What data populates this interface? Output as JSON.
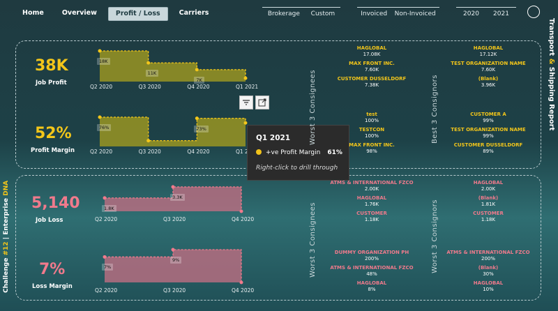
{
  "nav": {
    "items": [
      {
        "label": "Home"
      },
      {
        "label": "Overview"
      },
      {
        "label": "Profit / Loss",
        "active": true
      },
      {
        "label": "Carriers"
      }
    ]
  },
  "filters": {
    "group1": [
      "Brokerage",
      "Custom"
    ],
    "group2": [
      "Invoiced",
      "Non-Invoiced"
    ],
    "group3": [
      "2020",
      "2021"
    ]
  },
  "side_title": {
    "part1": "Transport",
    "amp": "&",
    "part2": "Shipping Report"
  },
  "side_left": {
    "a": "Challenge",
    "b": "#12",
    "sep": "|",
    "c": "Enterprise",
    "d": "DNA"
  },
  "kpis": {
    "job_profit": {
      "value": "38K",
      "label": "Job Profit"
    },
    "profit_margin": {
      "value": "52%",
      "label": "Profit Margin"
    },
    "job_loss": {
      "value": "5,140",
      "label": "Job Loss"
    },
    "loss_margin": {
      "value": "7%",
      "label": "Loss Margin"
    }
  },
  "colors": {
    "yellow": "#f3c61a",
    "pink": "#f07a8c"
  },
  "chart_data": [
    {
      "type": "area",
      "name": "job-profit",
      "categories": [
        "Q2 2020",
        "Q3 2020",
        "Q4 2020",
        "Q1 2021"
      ],
      "values": [
        18,
        11,
        7,
        2
      ],
      "labels": [
        "18K",
        "11K",
        "7K",
        ""
      ]
    },
    {
      "type": "area",
      "name": "profit-margin",
      "categories": [
        "Q2 2020",
        "Q3 2020",
        "Q4 2020",
        "Q1 2021"
      ],
      "values": [
        76,
        15,
        73,
        61
      ],
      "labels": [
        "76%",
        "",
        "73%",
        ""
      ]
    },
    {
      "type": "area",
      "name": "job-loss",
      "categories": [
        "Q2 2020",
        "Q3 2020",
        "Q4 2020"
      ],
      "values": [
        1.8,
        3.3,
        0
      ],
      "labels": [
        "1.8K",
        "3.3K",
        ""
      ]
    },
    {
      "type": "area",
      "name": "loss-margin",
      "categories": [
        "Q2 2020",
        "Q3 2020",
        "Q4 2020"
      ],
      "values": [
        7,
        9,
        0
      ],
      "labels": [
        "7%",
        "9%",
        ""
      ]
    }
  ],
  "tooltip": {
    "title": "Q1 2021",
    "metric": "+ve Profit Margin",
    "value": "61%",
    "hint": "Right-click to drill through"
  },
  "sections": {
    "worst_consignees_top": "Worst 3 Consignees",
    "best_consignors": "Best 3 Consignors",
    "worst_consignees_bottom": "Worst 3 Consignees",
    "worst_consignors": "Worst 3 Consignors"
  },
  "lists": {
    "profit_consignees": [
      {
        "n": "HAGLOBAL",
        "v": "17.08K"
      },
      {
        "n": "MAX FRONT INC.",
        "v": "7.60K"
      },
      {
        "n": "CUSTOMER DUSSELDORF",
        "v": "7.38K"
      }
    ],
    "profit_consignors": [
      {
        "n": "HAGLOBAL",
        "v": "17.12K"
      },
      {
        "n": "TEST ORGANIZATION NAME",
        "v": "7.60K"
      },
      {
        "n": "(Blank)",
        "v": "3.96K"
      }
    ],
    "margin_consignees": [
      {
        "n": "test",
        "v": "100%"
      },
      {
        "n": "TESTCON",
        "v": "100%"
      },
      {
        "n": "MAX FRONT INC.",
        "v": "98%"
      }
    ],
    "margin_consignors": [
      {
        "n": "CUSTOMER A",
        "v": "99%"
      },
      {
        "n": "TEST ORGANIZATION NAME",
        "v": "99%"
      },
      {
        "n": "CUSTOMER DUSSELDORF",
        "v": "89%"
      }
    ],
    "loss_consignees": [
      {
        "n": "ATMS & INTERNATIONAL FZCO",
        "v": "2.00K"
      },
      {
        "n": "HAGLOBAL",
        "v": "1.76K"
      },
      {
        "n": "CUSTOMER",
        "v": "1.18K"
      }
    ],
    "loss_consignors": [
      {
        "n": "HAGLOBAL",
        "v": "2.00K"
      },
      {
        "n": "(Blank)",
        "v": "1.81K"
      },
      {
        "n": "CUSTOMER",
        "v": "1.18K"
      }
    ],
    "lossm_consignees": [
      {
        "n": "DUMMY ORGANIZATION PH",
        "v": "200%"
      },
      {
        "n": "ATMS & INTERNATIONAL FZCO",
        "v": "48%"
      },
      {
        "n": "HAGLOBAL",
        "v": "8%"
      }
    ],
    "lossm_consignors": [
      {
        "n": "ATMS & INTERNATIONAL FZCO",
        "v": "200%"
      },
      {
        "n": "(Blank)",
        "v": "30%"
      },
      {
        "n": "HAGLOBAL",
        "v": "10%"
      }
    ]
  }
}
